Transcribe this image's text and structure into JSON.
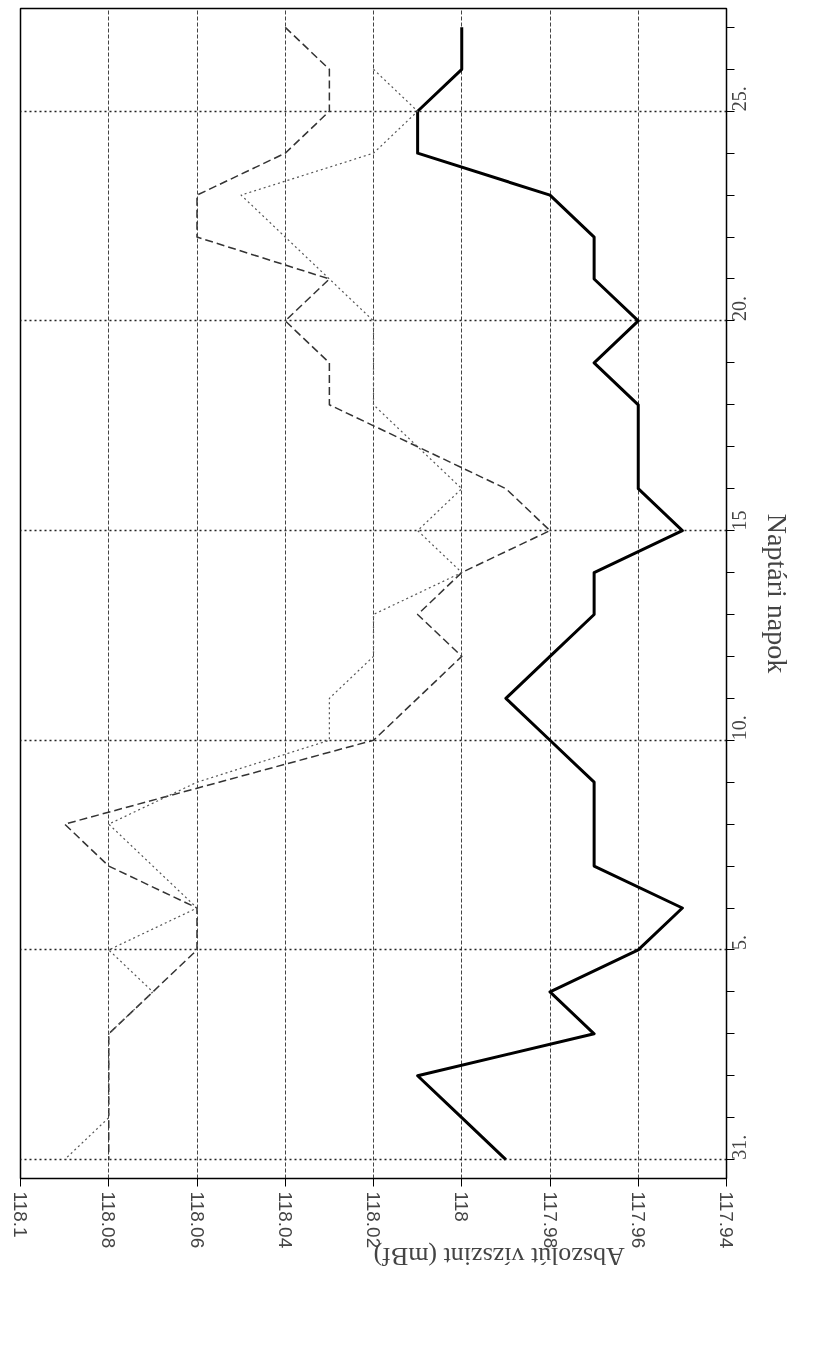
{
  "chart_data": {
    "type": "line",
    "orientation": "horizontal",
    "xlabel": "Abszolút vízszint (mBf)",
    "ylabel": "Naptári napok",
    "categories": [
      null,
      null,
      "25.",
      null,
      null,
      null,
      null,
      "20.",
      null,
      null,
      null,
      null,
      "15",
      null,
      null,
      null,
      null,
      "10.",
      null,
      null,
      null,
      null,
      "5.",
      null,
      null,
      null,
      null,
      "31."
    ],
    "series": [
      {
        "color": "#000000",
        "line_style": "solid",
        "values": [
          118.0,
          118.0,
          118.01,
          118.01,
          117.98,
          117.97,
          117.97,
          117.96,
          117.97,
          117.96,
          117.96,
          117.96,
          117.95,
          117.97,
          117.97,
          117.98,
          117.99,
          117.98,
          117.97,
          117.97,
          117.97,
          117.95,
          117.96,
          117.98,
          117.97,
          118.01,
          118.0,
          117.99
        ]
      },
      {
        "color": "#333333",
        "line_style": "dashed",
        "values": [
          118.04,
          118.03,
          118.03,
          118.04,
          118.06,
          118.06,
          118.03,
          118.04,
          118.03,
          118.03,
          118.01,
          117.99,
          117.98,
          118.0,
          118.01,
          118.0,
          118.01,
          118.02,
          118.055,
          118.09,
          118.08,
          118.06,
          118.06,
          118.07,
          118.08,
          118.08,
          118.08,
          118.08
        ]
      },
      {
        "color": "#555555",
        "line_style": "dotted",
        "values": [
          null,
          118.02,
          118.01,
          118.02,
          118.05,
          118.04,
          118.03,
          118.02,
          118.02,
          118.02,
          118.01,
          118.0,
          118.01,
          118.0,
          118.02,
          118.02,
          118.03,
          118.03,
          118.06,
          118.08,
          118.07,
          118.06,
          118.08,
          118.07,
          118.08,
          118.08,
          118.08,
          118.09
        ]
      }
    ],
    "xlim": [
      118.1,
      117.94
    ],
    "xticks": [
      118.1,
      118.08,
      118.06,
      118.04,
      118.02,
      118,
      117.98,
      117.96,
      117.94
    ],
    "grid": true,
    "marker": "none"
  }
}
